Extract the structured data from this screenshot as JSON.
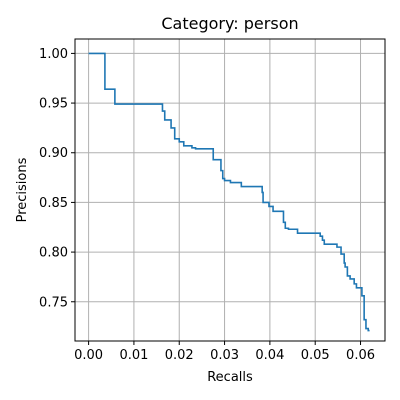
{
  "chart_data": {
    "type": "line",
    "step": true,
    "title": "Category: person",
    "xlabel": "Recalls",
    "ylabel": "Precisions",
    "xlim": [
      -0.003,
      0.0654
    ],
    "ylim": [
      0.7105,
      1.0145
    ],
    "xticks": [
      0.0,
      0.01,
      0.02,
      0.03,
      0.04,
      0.05,
      0.06
    ],
    "xtick_labels": [
      "0.00",
      "0.01",
      "0.02",
      "0.03",
      "0.04",
      "0.05",
      "0.06"
    ],
    "yticks": [
      0.75,
      0.8,
      0.85,
      0.9,
      0.95,
      1.0
    ],
    "ytick_labels": [
      "0.75",
      "0.80",
      "0.85",
      "0.90",
      "0.95",
      "1.00"
    ],
    "grid": true,
    "color": "#1f77b4",
    "series": [
      {
        "x": [
          0.0,
          0.0036,
          0.0036,
          0.0058,
          0.0058,
          0.0163,
          0.0163,
          0.0168,
          0.0168,
          0.0182,
          0.0182,
          0.019,
          0.019,
          0.02,
          0.02,
          0.021,
          0.021,
          0.0228,
          0.0228,
          0.0236,
          0.0236,
          0.0275,
          0.0275,
          0.0292,
          0.0292,
          0.0296,
          0.0296,
          0.03,
          0.03,
          0.0313,
          0.0313,
          0.0337,
          0.0337,
          0.0383,
          0.0383,
          0.0385,
          0.0385,
          0.0398,
          0.0398,
          0.0407,
          0.0407,
          0.043,
          0.043,
          0.0434,
          0.0434,
          0.0441,
          0.0441,
          0.0461,
          0.0461,
          0.0511,
          0.0511,
          0.0516,
          0.0516,
          0.052,
          0.052,
          0.0548,
          0.0548,
          0.0557,
          0.0557,
          0.0564,
          0.0564,
          0.0566,
          0.0566,
          0.0571,
          0.0571,
          0.0577,
          0.0577,
          0.0586,
          0.0586,
          0.0591,
          0.0591,
          0.0603,
          0.0603,
          0.0608,
          0.0608,
          0.0612,
          0.0612,
          0.0617,
          0.0617,
          0.062
        ],
        "y": [
          1.0,
          1.0,
          0.964,
          0.964,
          0.949,
          0.949,
          0.942,
          0.942,
          0.933,
          0.933,
          0.925,
          0.925,
          0.914,
          0.914,
          0.911,
          0.911,
          0.907,
          0.907,
          0.905,
          0.905,
          0.904,
          0.904,
          0.893,
          0.893,
          0.882,
          0.882,
          0.874,
          0.874,
          0.872,
          0.872,
          0.87,
          0.87,
          0.866,
          0.866,
          0.86,
          0.86,
          0.85,
          0.85,
          0.846,
          0.846,
          0.841,
          0.841,
          0.83,
          0.83,
          0.824,
          0.824,
          0.823,
          0.823,
          0.819,
          0.819,
          0.816,
          0.816,
          0.812,
          0.812,
          0.808,
          0.808,
          0.805,
          0.805,
          0.798,
          0.798,
          0.789,
          0.789,
          0.785,
          0.785,
          0.776,
          0.776,
          0.773,
          0.773,
          0.768,
          0.768,
          0.764,
          0.764,
          0.756,
          0.756,
          0.732,
          0.732,
          0.723,
          0.723,
          0.721,
          0.721
        ]
      }
    ]
  }
}
